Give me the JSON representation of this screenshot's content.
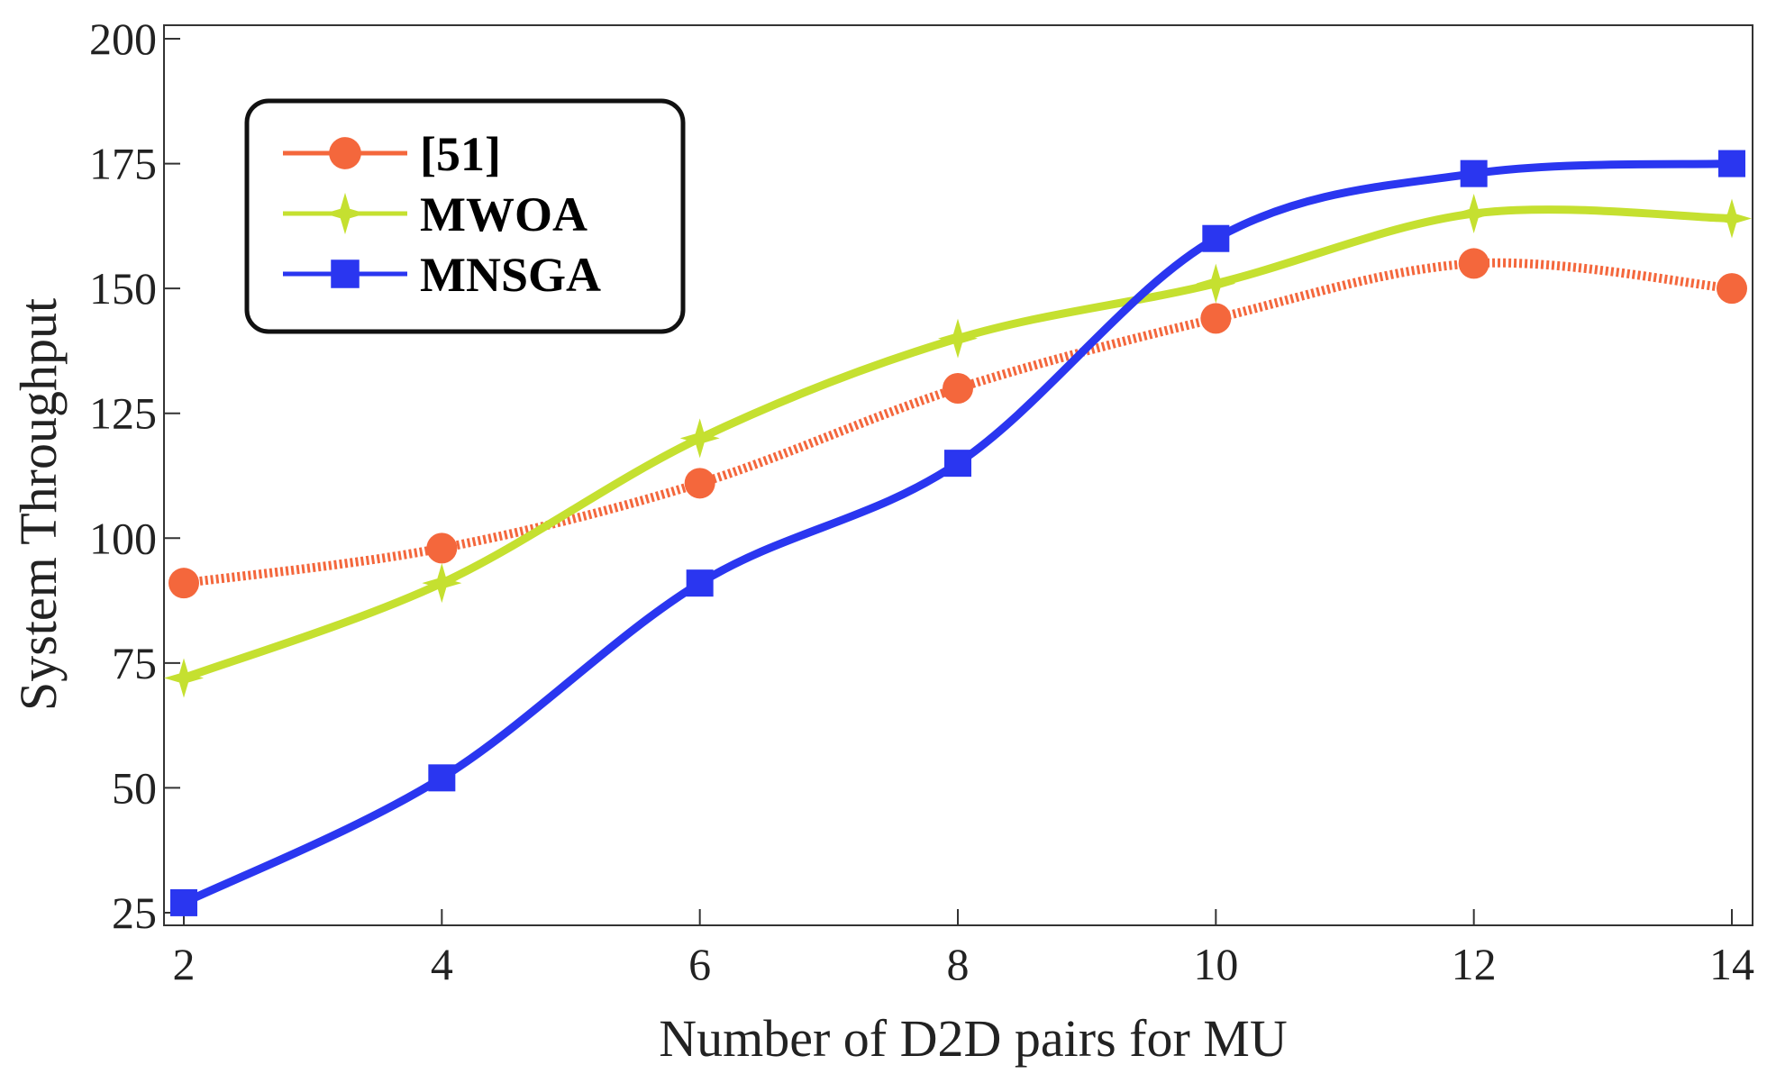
{
  "chart_data": {
    "type": "line",
    "title": "",
    "xlabel": "Number of D2D pairs for MU",
    "ylabel": "System Throughput",
    "x": [
      2,
      4,
      6,
      8,
      10,
      12,
      14
    ],
    "xlim": [
      2,
      14
    ],
    "ylim": [
      25,
      200
    ],
    "xticks": [
      2,
      4,
      6,
      8,
      10,
      12,
      14
    ],
    "yticks": [
      25,
      50,
      75,
      100,
      125,
      150,
      175,
      200
    ],
    "grid": false,
    "legend_position": "top-left",
    "series": [
      {
        "name": "[51]",
        "color": "#f4673c",
        "marker": "circle",
        "line": "dotted",
        "values": [
          91,
          98,
          111,
          130,
          144,
          155,
          150
        ]
      },
      {
        "name": "MWOA",
        "color": "#c5e030",
        "marker": "star",
        "line": "solid",
        "values": [
          72,
          91,
          120,
          140,
          151,
          165,
          164
        ]
      },
      {
        "name": "MNSGA",
        "color": "#2a36f0",
        "marker": "square",
        "line": "solid",
        "values": [
          27,
          52,
          91,
          115,
          160,
          173,
          175
        ]
      }
    ]
  }
}
